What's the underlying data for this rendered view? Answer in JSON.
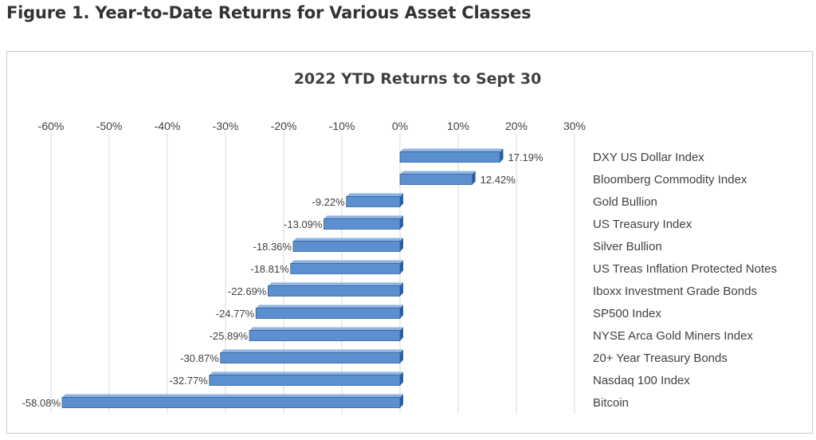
{
  "figure": {
    "heading": "Figure 1. Year-to-Date Returns for Various Asset Classes"
  },
  "colors": {
    "bar_fill": "#5b8fcf",
    "bar_top": "#8fb4e3",
    "bar_edge": "#2f5f9a",
    "grid": "#d9d9d9",
    "text": "#404040"
  },
  "chart_data": {
    "type": "bar",
    "orientation": "horizontal",
    "title": "2022 YTD Returns to Sept 30",
    "xlabel": "",
    "ylabel": "",
    "x_axis_position": "top",
    "xlim": [
      -60,
      30
    ],
    "x_ticks": [
      -60,
      -50,
      -40,
      -30,
      -20,
      -10,
      0,
      10,
      20,
      30
    ],
    "x_tick_labels": [
      "-60%",
      "-50%",
      "-40%",
      "-30%",
      "-20%",
      "-10%",
      "0%",
      "10%",
      "20%",
      "30%"
    ],
    "grid": true,
    "legend": "none",
    "categories": [
      "DXY US Dollar Index",
      "Bloomberg Commodity Index",
      "Gold Bullion",
      "US Treasury Index",
      "Silver Bullion",
      "US Treas Inflation Protected Notes",
      "Iboxx Investment Grade Bonds",
      "SP500 Index",
      "NYSE Arca Gold Miners Index",
      "20+ Year Treasury Bonds",
      "Nasdaq 100 Index",
      "Bitcoin"
    ],
    "values": [
      17.19,
      12.42,
      -9.22,
      -13.09,
      -18.36,
      -18.81,
      -22.69,
      -24.77,
      -25.89,
      -30.87,
      -32.77,
      -58.08
    ],
    "value_labels": [
      "17.19%",
      "12.42%",
      "-9.22%",
      "-13.09%",
      "-18.36%",
      "-18.81%",
      "-22.69%",
      "-24.77%",
      "-25.89%",
      "-30.87%",
      "-32.77%",
      "-58.08%"
    ]
  }
}
